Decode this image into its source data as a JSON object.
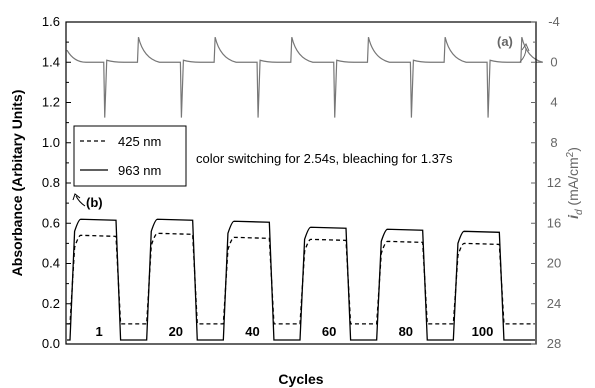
{
  "chart_data": {
    "type": "line",
    "xlabel": "Cycles",
    "ylabel": "Absorbance (Arbitary Units)",
    "y2label": "i_d (mA/cm^2)",
    "y2label_parts": {
      "main": "i",
      "sub": "d",
      "unit_open": " (mA/cm",
      "sup": "2",
      "unit_close": ")"
    },
    "ylim": [
      0.0,
      1.6
    ],
    "y2lim": [
      -4,
      28
    ],
    "y2_inverted": true,
    "yticks": [
      "0.0",
      "0.2",
      "0.4",
      "0.6",
      "0.8",
      "1.0",
      "1.2",
      "1.4",
      "1.6"
    ],
    "y2ticks": [
      "-4",
      "0",
      "4",
      "8",
      "12",
      "16",
      "20",
      "24",
      "28"
    ],
    "cycle_labels": [
      "1",
      "20",
      "40",
      "60",
      "80",
      "100"
    ],
    "annotation": "color switching for 2.54s, bleaching for 1.37s",
    "label_a": "(a)",
    "label_b": "(b)",
    "grid": false,
    "legend_position": "left",
    "series": [
      {
        "name": "425 nm",
        "style": "dashed",
        "axis": "left",
        "baseline": 0.1,
        "plateaus": [
          0.54,
          0.55,
          0.53,
          0.52,
          0.51,
          0.5
        ]
      },
      {
        "name": "963 nm",
        "style": "solid",
        "axis": "left",
        "baseline": 0.02,
        "plateaus": [
          0.62,
          0.62,
          0.61,
          0.58,
          0.57,
          0.56
        ]
      },
      {
        "name": "current density",
        "style": "solid-gray",
        "axis": "right",
        "baseline_current": 0,
        "spike_up_current": -2.5,
        "spike_down_current": 5.5
      }
    ]
  }
}
